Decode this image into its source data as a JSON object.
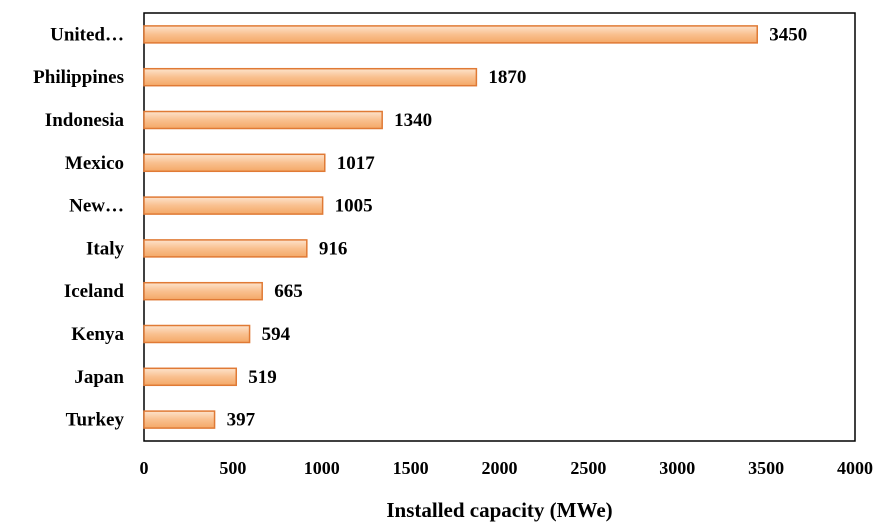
{
  "chart_data": {
    "type": "bar",
    "orientation": "horizontal",
    "categories": [
      "United…",
      "Philippines",
      "Indonesia",
      "Mexico",
      "New…",
      "Italy",
      "Iceland",
      "Kenya",
      "Japan",
      "Turkey"
    ],
    "values": [
      3450,
      1870,
      1340,
      1017,
      1005,
      916,
      665,
      594,
      519,
      397
    ],
    "value_labels": [
      "3450",
      "1870",
      "1340",
      "1017",
      "1005",
      "916",
      "665",
      "594",
      "519",
      "397"
    ],
    "xlabel": "Installed capacity (MWe)",
    "ylabel": "",
    "xlim": [
      0,
      4000
    ],
    "xticks": [
      "0",
      "500",
      "1000",
      "1500",
      "2000",
      "2500",
      "3000",
      "3500",
      "4000"
    ],
    "grid": false,
    "legend": "none",
    "bar_color": "#f9c08f",
    "bar_edge_color": "#e07a35"
  }
}
